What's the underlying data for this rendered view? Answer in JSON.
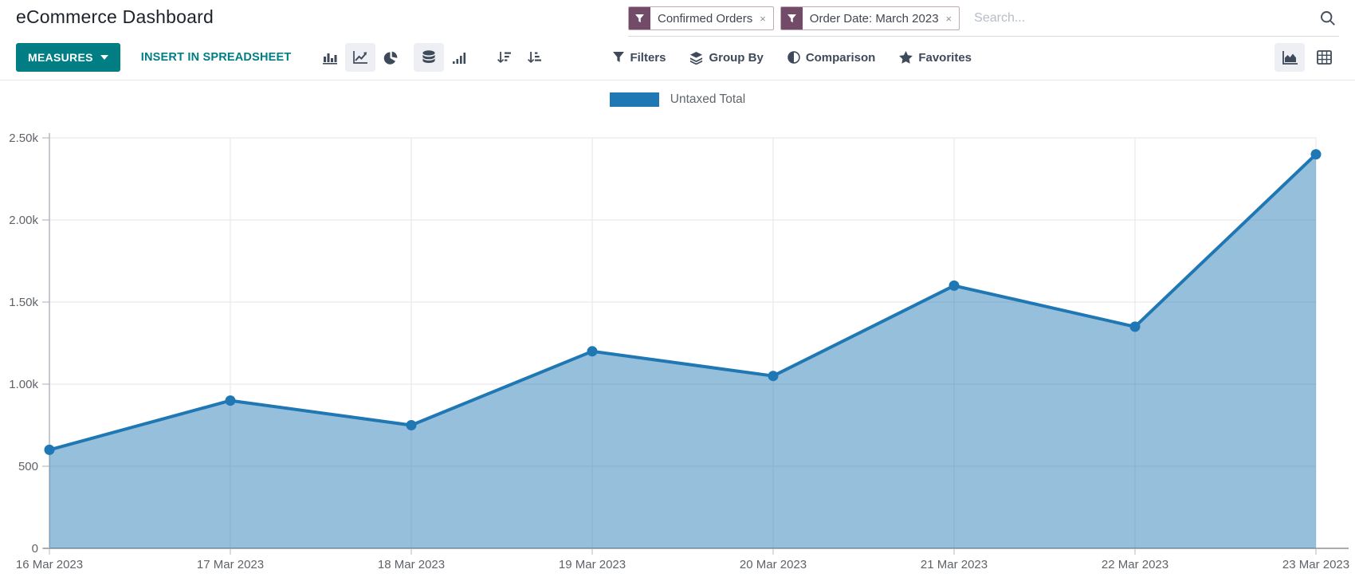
{
  "header": {
    "title": "eCommerce Dashboard",
    "search": {
      "filters": [
        {
          "label": "Confirmed Orders"
        },
        {
          "label": "Order Date: March 2023"
        }
      ],
      "remove_symbol": "×",
      "placeholder": "Search..."
    }
  },
  "toolbar": {
    "measures_label": "MEASURES",
    "insert_label": "INSERT IN SPREADSHEET",
    "menus": {
      "filters": "Filters",
      "group_by": "Group By",
      "comparison": "Comparison",
      "favorites": "Favorites"
    }
  },
  "colors": {
    "teal": "#017e84",
    "purple": "#714B67",
    "line": "#1f77b4",
    "icon": "#3e4a5a"
  },
  "chart_data": {
    "type": "area",
    "title": "",
    "legend_position": "top",
    "legend": "Untaxed Total",
    "x": [
      "16 Mar 2023",
      "17 Mar 2023",
      "18 Mar 2023",
      "19 Mar 2023",
      "20 Mar 2023",
      "21 Mar 2023",
      "22 Mar 2023",
      "23 Mar 2023"
    ],
    "series": [
      {
        "name": "Untaxed Total",
        "values": [
          600,
          900,
          750,
          1200,
          1050,
          1600,
          1350,
          2400
        ]
      }
    ],
    "xlabel": "",
    "ylabel": "",
    "ylim": [
      0,
      2500
    ],
    "yticks": [
      "0",
      "500",
      "1.00k",
      "1.50k",
      "2.00k",
      "2.50k"
    ],
    "grid": true
  }
}
